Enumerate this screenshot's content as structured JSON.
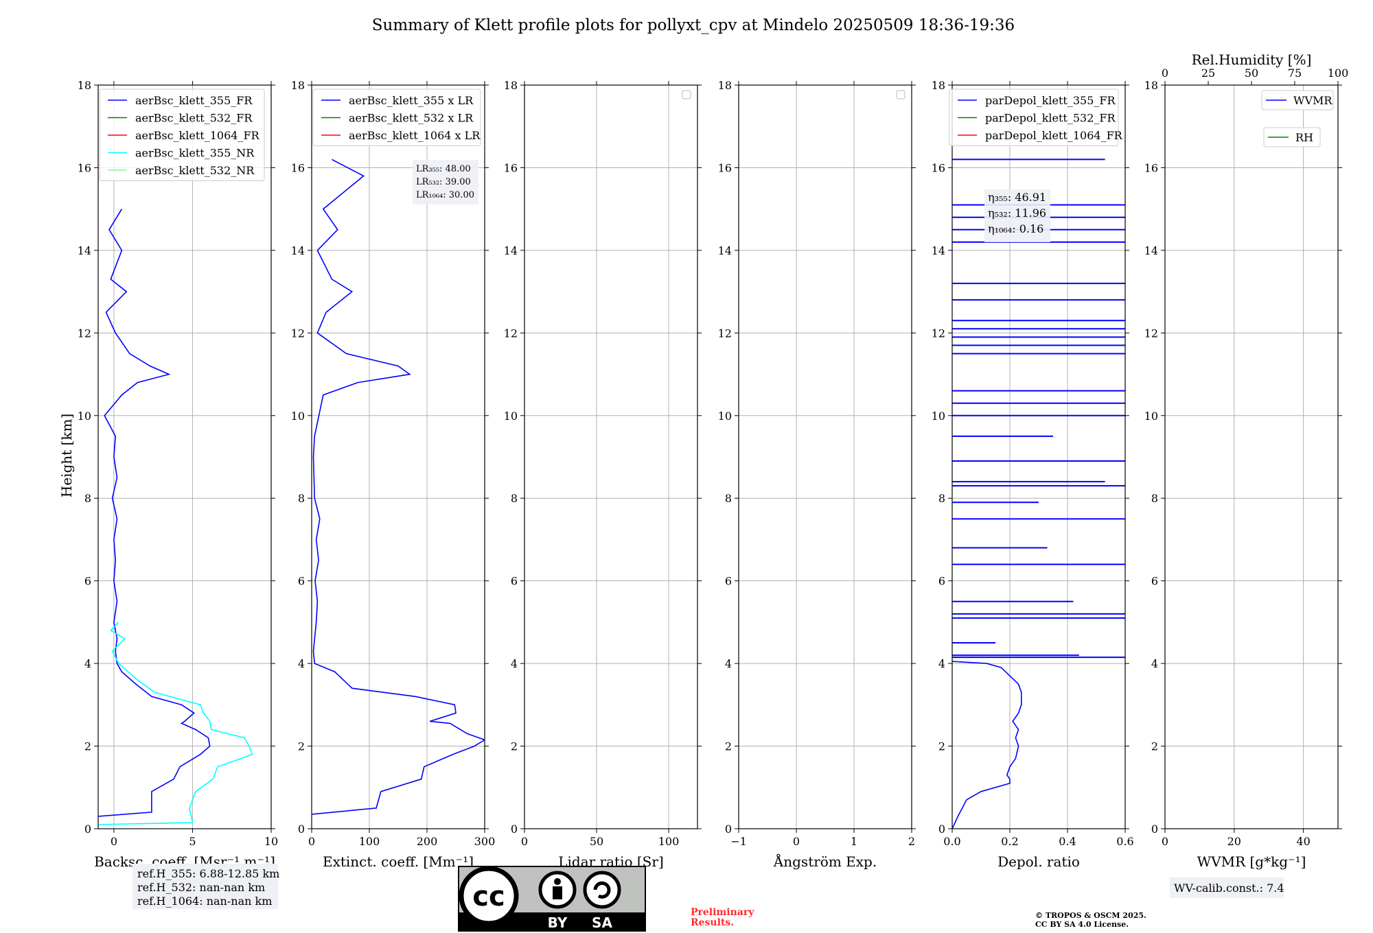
{
  "title": "Summary of Klett profile plots for pollyxt_cpv at Mindelo 20250509 18:36-19:36",
  "ylabel": "Height [km]",
  "colors": {
    "blue": "#0000ff",
    "green": "#008000",
    "red": "#ff0000",
    "cyan": "#00ffff",
    "lightgreen": "#90ee90"
  },
  "chart_data": [
    {
      "type": "line",
      "name": "backscatter",
      "xlabel": "Backsc. coeff. [Msr⁻¹ m⁻¹]",
      "xlim": [
        -1,
        10
      ],
      "ylim": [
        0,
        18
      ],
      "xticks": [
        "0",
        "5",
        "10"
      ],
      "xtickvals": [
        0,
        5,
        10
      ],
      "yticks": [
        "0",
        "2",
        "4",
        "6",
        "8",
        "10",
        "12",
        "14",
        "16",
        "18"
      ],
      "legend": [
        "aerBsc_klett_355_FR",
        "aerBsc_klett_532_FR",
        "aerBsc_klett_1064_FR",
        "aerBsc_klett_355_NR",
        "aerBsc_klett_532_NR"
      ],
      "series": [
        {
          "name": "aerBsc_klett_355_FR",
          "color": "#0000ff",
          "y": [
            0.3,
            0.4,
            0.9,
            1.2,
            1.5,
            1.8,
            2.0,
            2.2,
            2.4,
            2.55,
            2.6,
            2.8,
            3.0,
            3.2,
            3.5,
            3.8,
            4.0,
            4.3,
            4.6,
            5.0,
            5.5,
            6.0,
            6.5,
            7.0,
            7.5,
            8.0,
            8.5,
            9.0,
            9.5,
            10.0,
            10.5,
            10.8,
            11.0,
            11.2,
            11.5,
            12.0,
            12.5,
            13.0,
            13.3,
            14.0,
            14.5,
            15.0
          ],
          "x": [
            -1,
            2.4,
            2.4,
            3.8,
            4.2,
            5.5,
            6.1,
            6.0,
            5.2,
            4.3,
            4.5,
            5.1,
            4.3,
            2.4,
            1.4,
            0.5,
            0.2,
            0.1,
            0.2,
            0.0,
            0.2,
            0.0,
            0.1,
            0.0,
            0.2,
            -0.1,
            0.2,
            0.0,
            0.1,
            -0.6,
            0.5,
            1.5,
            3.5,
            2.3,
            1.0,
            0.1,
            -0.5,
            0.8,
            -0.2,
            0.5,
            -0.3,
            0.5
          ]
        },
        {
          "name": "aerBsc_klett_355_NR",
          "color": "#00ffff",
          "y": [
            0.1,
            0.15,
            0.5,
            0.9,
            1.2,
            1.5,
            1.8,
            2.0,
            2.2,
            2.4,
            2.6,
            2.8,
            3.0,
            3.3,
            3.6,
            4.0,
            4.3,
            4.6,
            4.8,
            5.0
          ],
          "x": [
            -1,
            5.0,
            4.8,
            5.2,
            6.3,
            6.6,
            8.8,
            8.6,
            8.3,
            6.2,
            6.1,
            5.7,
            5.5,
            2.6,
            1.5,
            0.3,
            -0.1,
            0.7,
            -0.2,
            0.3
          ]
        }
      ]
    },
    {
      "type": "line",
      "name": "extinction",
      "xlabel": "Extinct. coeff. [Mm⁻¹]",
      "xlim": [
        0,
        300
      ],
      "ylim": [
        0,
        18
      ],
      "xticks": [
        "0",
        "100",
        "200",
        "300"
      ],
      "xtickvals": [
        0,
        100,
        200,
        300
      ],
      "legend": [
        "aerBsc_klett_355 x LR",
        "aerBsc_klett_532 x LR",
        "aerBsc_klett_1064 x LR"
      ],
      "annotation": [
        "LR₃₅₅: 48.00",
        "LR₅₃₂: 39.00",
        "LR₁₀₆₄: 30.00"
      ],
      "series": [
        {
          "name": "aerBsc_klett_355 x LR",
          "color": "#0000ff",
          "y": [
            0.35,
            0.5,
            0.9,
            1.2,
            1.5,
            1.8,
            2.0,
            2.15,
            2.3,
            2.55,
            2.6,
            2.8,
            3.0,
            3.2,
            3.4,
            3.8,
            4.0,
            4.3,
            5.0,
            5.5,
            6.0,
            6.5,
            7.0,
            7.5,
            8.0,
            9.0,
            9.5,
            10.5,
            10.8,
            11.0,
            11.2,
            11.5,
            12.0,
            12.5,
            13.0,
            13.3,
            14.0,
            14.5,
            15.0,
            15.8,
            16.2
          ],
          "x": [
            0,
            112,
            120,
            190,
            195,
            245,
            282,
            300,
            270,
            240,
            205,
            250,
            248,
            180,
            70,
            40,
            5,
            3,
            8,
            10,
            6,
            12,
            8,
            14,
            5,
            3,
            5,
            20,
            80,
            170,
            150,
            60,
            10,
            25,
            70,
            35,
            10,
            45,
            20,
            90,
            35
          ]
        }
      ]
    },
    {
      "type": "line",
      "name": "lidar_ratio",
      "xlabel": "Lidar ratio [Sr]",
      "xlim": [
        0,
        120
      ],
      "ylim": [
        0,
        18
      ],
      "xticks": [
        "0",
        "50",
        "100"
      ],
      "xtickvals": [
        0,
        50,
        100
      ],
      "series": []
    },
    {
      "type": "line",
      "name": "angstrom",
      "xlabel": "Ångström Exp.",
      "xlim": [
        -1,
        2
      ],
      "ylim": [
        0,
        18
      ],
      "xticks": [
        "−1",
        "0",
        "1",
        "2"
      ],
      "xtickvals": [
        -1,
        0,
        1,
        2
      ],
      "series": []
    },
    {
      "type": "line",
      "name": "depol",
      "xlabel": "Depol. ratio",
      "xlim": [
        0,
        0.6
      ],
      "ylim": [
        0,
        18
      ],
      "xticks": [
        "0.0",
        "0.2",
        "0.4",
        "0.6"
      ],
      "xtickvals": [
        0,
        0.2,
        0.4,
        0.6
      ],
      "legend": [
        "parDepol_klett_355_FR",
        "parDepol_klett_532_FR",
        "parDepol_klett_1064_FR"
      ],
      "annotation": [
        "η₃₅₅: 46.91",
        "η₅₃₂: 11.96",
        "η₁₀₆₄: 0.16"
      ],
      "series": [
        {
          "name": "parDepol_klett_355_FR",
          "color": "#0000ff",
          "y": [
            0.0,
            0.3,
            0.7,
            0.9,
            1.1,
            1.2,
            1.3,
            1.5,
            1.7,
            2.0,
            2.2,
            2.4,
            2.6,
            2.8,
            3.0,
            3.3,
            3.5,
            3.7,
            3.9,
            4.0,
            4.05
          ],
          "x": [
            0.0,
            0.02,
            0.05,
            0.1,
            0.2,
            0.2,
            0.19,
            0.2,
            0.22,
            0.23,
            0.22,
            0.23,
            0.21,
            0.23,
            0.24,
            0.24,
            0.23,
            0.2,
            0.17,
            0.12,
            0.0
          ]
        },
        {
          "name": "spikes",
          "color": "#0000ff",
          "y": [
            4.15,
            4.2,
            4.5,
            5.1,
            5.2,
            5.5,
            6.4,
            6.8,
            7.5,
            7.9,
            8.3,
            8.4,
            8.9,
            9.5,
            10.0,
            10.3,
            10.6,
            11.5,
            11.7,
            11.9,
            12.1,
            12.3,
            12.8,
            13.2,
            14.2,
            14.5,
            14.8,
            15.1,
            16.2
          ],
          "x": [
            0.6,
            0.44,
            0.15,
            0.6,
            0.6,
            0.42,
            0.6,
            0.33,
            0.6,
            0.3,
            0.6,
            0.53,
            0.6,
            0.35,
            0.6,
            0.6,
            0.6,
            0.6,
            0.6,
            0.6,
            0.6,
            0.6,
            0.6,
            0.6,
            0.6,
            0.6,
            0.6,
            0.6,
            0.53
          ]
        }
      ]
    },
    {
      "type": "line",
      "name": "wvmr",
      "xlabel": "WVMR [g*kg⁻¹]",
      "xlim": [
        0,
        50
      ],
      "ylim": [
        0,
        18
      ],
      "xticks": [
        "0",
        "20",
        "40"
      ],
      "xtickvals": [
        0,
        20,
        40
      ],
      "top_xlabel": "Rel.Humidity [%]",
      "top_xticks": [
        "0",
        "25",
        "50",
        "75",
        "100"
      ],
      "top_xtickvals": [
        0,
        25,
        50,
        75,
        100
      ],
      "legend": [
        "WVMR",
        "RH"
      ],
      "series": []
    }
  ],
  "ref_box": [
    "ref.H_355: 6.88-12.85 km",
    "ref.H_532: nan-nan km",
    "ref.H_1064: nan-nan km"
  ],
  "wv_calib": "WV-calib.const.: 7.4",
  "preliminary": [
    "Preliminary",
    "Results."
  ],
  "copyright": [
    "© TROPOS & OSCM 2025.",
    "CC BY SA 4.0 License."
  ],
  "license_badge": {
    "by": "BY",
    "sa": "SA"
  }
}
